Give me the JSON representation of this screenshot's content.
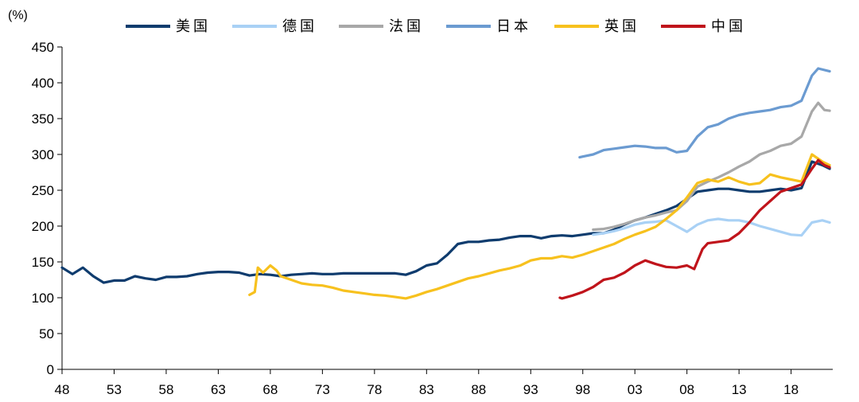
{
  "chart_data": {
    "type": "line",
    "title": "",
    "xlabel": "",
    "ylabel": "(%)",
    "ylim": [
      0,
      450
    ],
    "yticks": [
      0,
      50,
      100,
      150,
      200,
      250,
      300,
      350,
      400,
      450
    ],
    "xlim": [
      1948,
      2022
    ],
    "xticks": [
      1948,
      1953,
      1958,
      1963,
      1968,
      1973,
      1978,
      1983,
      1988,
      1993,
      1998,
      2003,
      2008,
      2013,
      2018
    ],
    "xtick_labels": [
      "48",
      "53",
      "58",
      "63",
      "68",
      "73",
      "78",
      "83",
      "88",
      "93",
      "98",
      "03",
      "08",
      "13",
      "18"
    ],
    "grid": false,
    "legend_position": "top",
    "series": [
      {
        "name": "美国",
        "color": "#0f3c6e",
        "points": [
          [
            1948,
            142
          ],
          [
            1949,
            133
          ],
          [
            1950,
            142
          ],
          [
            1951,
            130
          ],
          [
            1952,
            121
          ],
          [
            1953,
            124
          ],
          [
            1954,
            124
          ],
          [
            1955,
            130
          ],
          [
            1956,
            127
          ],
          [
            1957,
            125
          ],
          [
            1958,
            129
          ],
          [
            1959,
            129
          ],
          [
            1960,
            130
          ],
          [
            1961,
            133
          ],
          [
            1962,
            135
          ],
          [
            1963,
            136
          ],
          [
            1964,
            136
          ],
          [
            1965,
            135
          ],
          [
            1966,
            131
          ],
          [
            1967,
            133
          ],
          [
            1968,
            132
          ],
          [
            1969,
            130
          ],
          [
            1970,
            132
          ],
          [
            1971,
            133
          ],
          [
            1972,
            134
          ],
          [
            1973,
            133
          ],
          [
            1974,
            133
          ],
          [
            1975,
            134
          ],
          [
            1976,
            134
          ],
          [
            1977,
            134
          ],
          [
            1978,
            134
          ],
          [
            1979,
            134
          ],
          [
            1980,
            134
          ],
          [
            1981,
            132
          ],
          [
            1982,
            137
          ],
          [
            1983,
            145
          ],
          [
            1984,
            148
          ],
          [
            1985,
            160
          ],
          [
            1986,
            175
          ],
          [
            1987,
            178
          ],
          [
            1988,
            178
          ],
          [
            1989,
            180
          ],
          [
            1990,
            181
          ],
          [
            1991,
            184
          ],
          [
            1992,
            186
          ],
          [
            1993,
            186
          ],
          [
            1994,
            183
          ],
          [
            1995,
            186
          ],
          [
            1996,
            187
          ],
          [
            1997,
            186
          ],
          [
            1998,
            188
          ],
          [
            1999,
            190
          ],
          [
            2000,
            190
          ],
          [
            2001,
            195
          ],
          [
            2002,
            202
          ],
          [
            2003,
            208
          ],
          [
            2004,
            212
          ],
          [
            2005,
            217
          ],
          [
            2006,
            222
          ],
          [
            2007,
            228
          ],
          [
            2008,
            238
          ],
          [
            2009,
            248
          ],
          [
            2010,
            250
          ],
          [
            2011,
            252
          ],
          [
            2012,
            252
          ],
          [
            2013,
            250
          ],
          [
            2014,
            248
          ],
          [
            2015,
            248
          ],
          [
            2016,
            250
          ],
          [
            2017,
            252
          ],
          [
            2018,
            250
          ],
          [
            2019,
            253
          ],
          [
            2020,
            290
          ],
          [
            2021,
            285
          ],
          [
            2021.7,
            280
          ]
        ]
      },
      {
        "name": "德国",
        "color": "#a9d1f5",
        "points": [
          [
            1999,
            188
          ],
          [
            2000,
            190
          ],
          [
            2001,
            193
          ],
          [
            2002,
            197
          ],
          [
            2003,
            202
          ],
          [
            2004,
            205
          ],
          [
            2005,
            206
          ],
          [
            2006,
            208
          ],
          [
            2007,
            200
          ],
          [
            2008,
            192
          ],
          [
            2009,
            202
          ],
          [
            2010,
            208
          ],
          [
            2011,
            210
          ],
          [
            2012,
            208
          ],
          [
            2013,
            208
          ],
          [
            2014,
            205
          ],
          [
            2015,
            200
          ],
          [
            2016,
            196
          ],
          [
            2017,
            192
          ],
          [
            2018,
            188
          ],
          [
            2019,
            187
          ],
          [
            2020,
            205
          ],
          [
            2021,
            208
          ],
          [
            2021.7,
            205
          ]
        ]
      },
      {
        "name": "法国",
        "color": "#a8a8a8",
        "points": [
          [
            1999,
            195
          ],
          [
            2000,
            196
          ],
          [
            2001,
            199
          ],
          [
            2002,
            203
          ],
          [
            2003,
            208
          ],
          [
            2004,
            212
          ],
          [
            2005,
            215
          ],
          [
            2006,
            219
          ],
          [
            2007,
            222
          ],
          [
            2008,
            235
          ],
          [
            2009,
            255
          ],
          [
            2010,
            262
          ],
          [
            2011,
            268
          ],
          [
            2012,
            275
          ],
          [
            2013,
            283
          ],
          [
            2014,
            290
          ],
          [
            2015,
            300
          ],
          [
            2016,
            305
          ],
          [
            2017,
            312
          ],
          [
            2018,
            315
          ],
          [
            2019,
            325
          ],
          [
            2020,
            360
          ],
          [
            2020.6,
            372
          ],
          [
            2021.2,
            362
          ],
          [
            2021.7,
            361
          ]
        ]
      },
      {
        "name": "日本",
        "color": "#6b9bd1",
        "points": [
          [
            1997.7,
            296
          ],
          [
            1998,
            297
          ],
          [
            1999,
            300
          ],
          [
            2000,
            306
          ],
          [
            2001,
            308
          ],
          [
            2002,
            310
          ],
          [
            2003,
            312
          ],
          [
            2004,
            311
          ],
          [
            2005,
            309
          ],
          [
            2006,
            309
          ],
          [
            2007,
            303
          ],
          [
            2008,
            305
          ],
          [
            2009,
            325
          ],
          [
            2010,
            338
          ],
          [
            2011,
            342
          ],
          [
            2012,
            350
          ],
          [
            2013,
            355
          ],
          [
            2014,
            358
          ],
          [
            2015,
            360
          ],
          [
            2016,
            362
          ],
          [
            2017,
            366
          ],
          [
            2018,
            368
          ],
          [
            2019,
            375
          ],
          [
            2020,
            410
          ],
          [
            2020.6,
            420
          ],
          [
            2021.7,
            416
          ]
        ]
      },
      {
        "name": "英国",
        "color": "#f7c11e",
        "points": [
          [
            1966,
            104
          ],
          [
            1966.5,
            108
          ],
          [
            1966.8,
            142
          ],
          [
            1967.3,
            135
          ],
          [
            1968,
            145
          ],
          [
            1968.6,
            138
          ],
          [
            1969,
            130
          ],
          [
            1970,
            125
          ],
          [
            1971,
            120
          ],
          [
            1972,
            118
          ],
          [
            1973,
            117
          ],
          [
            1974,
            114
          ],
          [
            1975,
            110
          ],
          [
            1976,
            108
          ],
          [
            1977,
            106
          ],
          [
            1978,
            104
          ],
          [
            1979,
            103
          ],
          [
            1980,
            101
          ],
          [
            1981,
            99
          ],
          [
            1982,
            103
          ],
          [
            1983,
            108
          ],
          [
            1984,
            112
          ],
          [
            1985,
            117
          ],
          [
            1986,
            122
          ],
          [
            1987,
            127
          ],
          [
            1988,
            130
          ],
          [
            1989,
            134
          ],
          [
            1990,
            138
          ],
          [
            1991,
            141
          ],
          [
            1992,
            145
          ],
          [
            1993,
            152
          ],
          [
            1994,
            155
          ],
          [
            1995,
            155
          ],
          [
            1996,
            158
          ],
          [
            1997,
            156
          ],
          [
            1998,
            160
          ],
          [
            1999,
            165
          ],
          [
            2000,
            170
          ],
          [
            2001,
            175
          ],
          [
            2002,
            182
          ],
          [
            2003,
            188
          ],
          [
            2004,
            193
          ],
          [
            2005,
            199
          ],
          [
            2006,
            210
          ],
          [
            2007,
            222
          ],
          [
            2008,
            240
          ],
          [
            2009,
            260
          ],
          [
            2010,
            265
          ],
          [
            2011,
            262
          ],
          [
            2012,
            268
          ],
          [
            2013,
            262
          ],
          [
            2014,
            258
          ],
          [
            2015,
            260
          ],
          [
            2016,
            272
          ],
          [
            2017,
            268
          ],
          [
            2018,
            265
          ],
          [
            2019,
            262
          ],
          [
            2020,
            300
          ],
          [
            2021,
            290
          ],
          [
            2021.7,
            285
          ]
        ]
      },
      {
        "name": "中国",
        "color": "#c0141b",
        "points": [
          [
            1995.8,
            100
          ],
          [
            1996,
            99
          ],
          [
            1997,
            103
          ],
          [
            1998,
            108
          ],
          [
            1999,
            115
          ],
          [
            2000,
            125
          ],
          [
            2001,
            128
          ],
          [
            2002,
            135
          ],
          [
            2003,
            145
          ],
          [
            2004,
            152
          ],
          [
            2005,
            147
          ],
          [
            2006,
            143
          ],
          [
            2007,
            142
          ],
          [
            2008,
            145
          ],
          [
            2008.7,
            140
          ],
          [
            2009.5,
            168
          ],
          [
            2010,
            176
          ],
          [
            2011,
            178
          ],
          [
            2012,
            180
          ],
          [
            2013,
            190
          ],
          [
            2014,
            205
          ],
          [
            2015,
            222
          ],
          [
            2016,
            235
          ],
          [
            2017,
            248
          ],
          [
            2018,
            253
          ],
          [
            2019,
            258
          ],
          [
            2020,
            280
          ],
          [
            2020.6,
            292
          ],
          [
            2021.2,
            285
          ],
          [
            2021.7,
            282
          ]
        ]
      }
    ]
  }
}
